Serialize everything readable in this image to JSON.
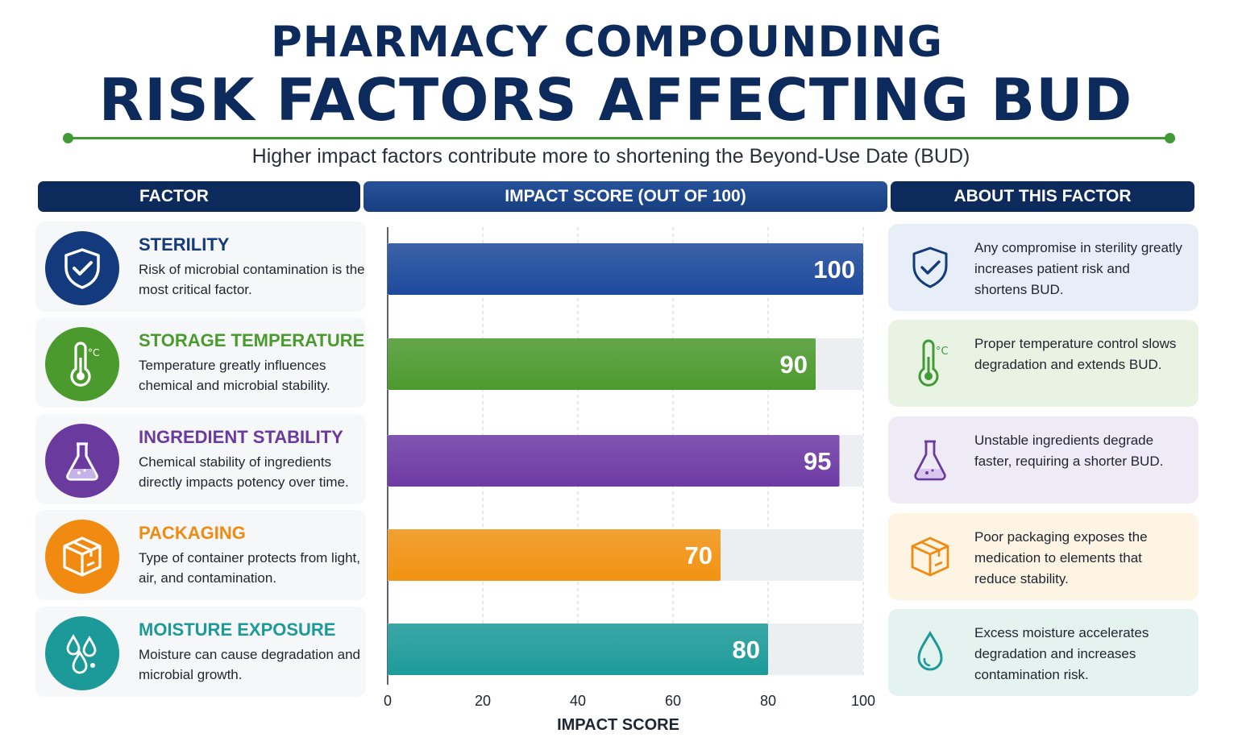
{
  "header": {
    "title_line1": "PHARMACY COMPOUNDING",
    "title_line2": "RISK FACTORS AFFECTING BUD",
    "subtitle": "Higher impact factors contribute more to shortening the Beyond-Use Date (BUD)"
  },
  "columns": {
    "factor": "FACTOR",
    "impact": "IMPACT SCORE (OUT OF 100)",
    "about": "ABOUT THIS FACTOR"
  },
  "factors": [
    {
      "name": "STERILITY",
      "description": "Risk of microbial contamination is the most critical factor.",
      "about": "Any compromise in sterility greatly increases patient risk and shortens BUD.",
      "icon": "shield-check-icon",
      "color": "#123a7c"
    },
    {
      "name": "STORAGE TEMPERATURE",
      "description": "Temperature greatly influences chemical and microbial stability.",
      "about": "Proper temperature control slows degradation and extends BUD.",
      "icon": "thermometer-icon",
      "color": "#4b9a2d"
    },
    {
      "name": "INGREDIENT STABILITY",
      "description": "Chemical stability of ingredients directly impacts potency over time.",
      "about": "Unstable ingredients degrade faster, requiring a shorter BUD.",
      "icon": "flask-icon",
      "color": "#6a3a9e"
    },
    {
      "name": "PACKAGING",
      "description": "Type of container protects from light, air, and contamination.",
      "about": "Poor packaging exposes the medication to elements that reduce stability.",
      "icon": "package-icon",
      "color": "#f08a10"
    },
    {
      "name": "MOISTURE EXPOSURE",
      "description": "Moisture can cause degradation and microbial growth.",
      "about": "Excess moisture accelerates degradation and increases contamination risk.",
      "icon": "water-drops-icon",
      "color": "#1c9a9a"
    }
  ],
  "chart_data": {
    "type": "bar",
    "orientation": "horizontal",
    "categories": [
      "STERILITY",
      "STORAGE TEMPERATURE",
      "INGREDIENT STABILITY",
      "PACKAGING",
      "MOISTURE EXPOSURE"
    ],
    "values": [
      100,
      90,
      95,
      70,
      80
    ],
    "value_labels": [
      "100",
      "90",
      "95",
      "70",
      "80"
    ],
    "xlabel": "IMPACT SCORE",
    "xlim": [
      0,
      100
    ],
    "xticks": [
      "0",
      "20",
      "40",
      "60",
      "80",
      "100"
    ],
    "grid": "vertical dashed",
    "colors": [
      "#1d4a9c",
      "#4c9a2e",
      "#6e3aa5",
      "#f29312",
      "#1c9b9a"
    ]
  },
  "about_box_colors": [
    "#e7eef8",
    "#e9f3e4",
    "#efebf6",
    "#fdf4e4",
    "#e4f3f0"
  ]
}
